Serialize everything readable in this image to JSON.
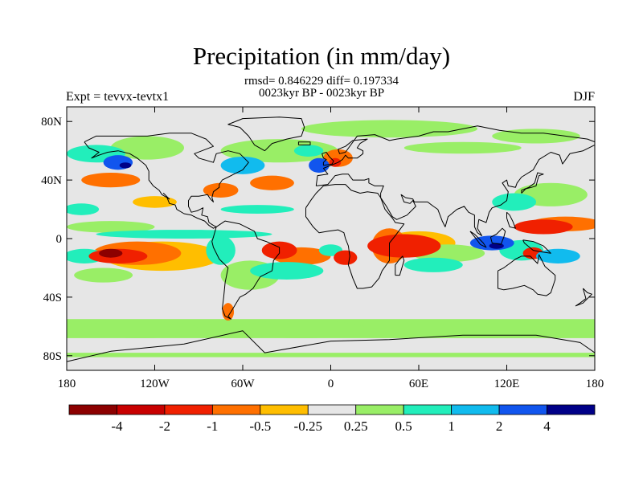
{
  "title": "Precipitation (in mm/day)",
  "stats_line": "rmsd= 0.846229  diff= 0.197334",
  "subtitle": "0023kyr BP - 0023kyr BP",
  "left_label": "Expt = tevvx-tevtx1",
  "right_label": "DJF",
  "map": {
    "projection": "cylindrical-equidistant",
    "lon_range": [
      -180,
      180
    ],
    "lat_range": [
      -90,
      90
    ],
    "y_ticks": [
      {
        "lat": 80,
        "label": "80N"
      },
      {
        "lat": 40,
        "label": "40N"
      },
      {
        "lat": 0,
        "label": "0"
      },
      {
        "lat": -40,
        "label": "40S"
      },
      {
        "lat": -80,
        "label": "80S"
      }
    ],
    "x_ticks": [
      {
        "lon": -180,
        "label": "180"
      },
      {
        "lon": -120,
        "label": "120W"
      },
      {
        "lon": -60,
        "label": "60W"
      },
      {
        "lon": 0,
        "label": "0"
      },
      {
        "lon": 60,
        "label": "60E"
      },
      {
        "lon": 120,
        "label": "120E"
      },
      {
        "lon": 180,
        "label": "180"
      }
    ],
    "background_color": "#e6e6e6",
    "coastline_color": "#000000"
  },
  "colorbar": {
    "colors": [
      "#8c0000",
      "#c80000",
      "#f02000",
      "#ff7000",
      "#ffbe00",
      "#e6e6e6",
      "#99ee66",
      "#22eebb",
      "#11bbee",
      "#1155ee",
      "#000088"
    ],
    "labels": [
      "-4",
      "-2",
      "-1",
      "-0.5",
      "-0.25",
      "0.25",
      "0.5",
      "1",
      "2",
      "4"
    ]
  },
  "field_regions": [
    {
      "level": -3,
      "lon": -145,
      "lat": -12,
      "rx": 20,
      "ry": 5
    },
    {
      "level": -5,
      "lon": -150,
      "lat": -10,
      "rx": 8,
      "ry": 3
    },
    {
      "level": -2,
      "lon": -132,
      "lat": -10,
      "rx": 30,
      "ry": 8
    },
    {
      "level": -1,
      "lon": -115,
      "lat": -12,
      "rx": 40,
      "ry": 10
    },
    {
      "level": 2,
      "lon": -168,
      "lat": -12,
      "rx": 14,
      "ry": 5
    },
    {
      "level": 1,
      "lon": -155,
      "lat": -25,
      "rx": 20,
      "ry": 5
    },
    {
      "level": 2,
      "lon": -100,
      "lat": 3,
      "rx": 60,
      "ry": 3
    },
    {
      "level": 1,
      "lon": -150,
      "lat": 8,
      "rx": 30,
      "ry": 4
    },
    {
      "level": -2,
      "lon": -150,
      "lat": 40,
      "rx": 20,
      "ry": 5
    },
    {
      "level": 4,
      "lon": -145,
      "lat": 52,
      "rx": 10,
      "ry": 5
    },
    {
      "level": 5,
      "lon": -140,
      "lat": 50,
      "rx": 4,
      "ry": 2
    },
    {
      "level": 2,
      "lon": -160,
      "lat": 58,
      "rx": 20,
      "ry": 6
    },
    {
      "level": 1,
      "lon": -125,
      "lat": 62,
      "rx": 25,
      "ry": 8
    },
    {
      "level": 3,
      "lon": -60,
      "lat": 50,
      "rx": 15,
      "ry": 6
    },
    {
      "level": -2,
      "lon": -75,
      "lat": 33,
      "rx": 12,
      "ry": 5
    },
    {
      "level": -2,
      "lon": -40,
      "lat": 38,
      "rx": 15,
      "ry": 5
    },
    {
      "level": 1,
      "lon": -35,
      "lat": 60,
      "rx": 40,
      "ry": 8
    },
    {
      "level": 4,
      "lon": -8,
      "lat": 50,
      "rx": 7,
      "ry": 5
    },
    {
      "level": -2,
      "lon": 5,
      "lat": 55,
      "rx": 10,
      "ry": 6
    },
    {
      "level": -3,
      "lon": 3,
      "lat": 52,
      "rx": 4,
      "ry": 3
    },
    {
      "level": 2,
      "lon": -15,
      "lat": 60,
      "rx": 10,
      "ry": 4
    },
    {
      "level": 1,
      "lon": 40,
      "lat": 75,
      "rx": 60,
      "ry": 6
    },
    {
      "level": 1,
      "lon": 90,
      "lat": 62,
      "rx": 40,
      "ry": 4
    },
    {
      "level": 2,
      "lon": -50,
      "lat": 20,
      "rx": 25,
      "ry": 3
    },
    {
      "level": 2,
      "lon": -75,
      "lat": -8,
      "rx": 10,
      "ry": 10
    },
    {
      "level": 1,
      "lon": -55,
      "lat": -25,
      "rx": 20,
      "ry": 10
    },
    {
      "level": -3,
      "lon": -35,
      "lat": -8,
      "rx": 12,
      "ry": 6
    },
    {
      "level": -2,
      "lon": -20,
      "lat": -12,
      "rx": 20,
      "ry": 6
    },
    {
      "level": 2,
      "lon": -30,
      "lat": -22,
      "rx": 25,
      "ry": 6
    },
    {
      "level": -3,
      "lon": 10,
      "lat": -13,
      "rx": 8,
      "ry": 5
    },
    {
      "level": 2,
      "lon": 0,
      "lat": -8,
      "rx": 8,
      "ry": 4
    },
    {
      "level": -3,
      "lon": 50,
      "lat": -5,
      "rx": 25,
      "ry": 8
    },
    {
      "level": -2,
      "lon": 40,
      "lat": -5,
      "rx": 12,
      "ry": 12
    },
    {
      "level": -1,
      "lon": 60,
      "lat": -3,
      "rx": 25,
      "ry": 8
    },
    {
      "level": 2,
      "lon": 70,
      "lat": -18,
      "rx": 20,
      "ry": 5
    },
    {
      "level": 1,
      "lon": 80,
      "lat": -10,
      "rx": 25,
      "ry": 6
    },
    {
      "level": -3,
      "lon": 145,
      "lat": 8,
      "rx": 20,
      "ry": 5
    },
    {
      "level": -2,
      "lon": 160,
      "lat": 10,
      "rx": 25,
      "ry": 5
    },
    {
      "level": 4,
      "lon": 110,
      "lat": -3,
      "rx": 15,
      "ry": 5
    },
    {
      "level": 5,
      "lon": 113,
      "lat": -5,
      "rx": 5,
      "ry": 2
    },
    {
      "level": 2,
      "lon": 130,
      "lat": -8,
      "rx": 15,
      "ry": 7
    },
    {
      "level": -3,
      "lon": 138,
      "lat": -10,
      "rx": 7,
      "ry": 4
    },
    {
      "level": 3,
      "lon": 155,
      "lat": -12,
      "rx": 15,
      "ry": 5
    },
    {
      "level": 2,
      "lon": 125,
      "lat": 25,
      "rx": 15,
      "ry": 6
    },
    {
      "level": 1,
      "lon": 150,
      "lat": 30,
      "rx": 25,
      "ry": 8
    },
    {
      "level": 2,
      "lon": -170,
      "lat": 20,
      "rx": 12,
      "ry": 4
    },
    {
      "level": -1,
      "lon": -120,
      "lat": 25,
      "rx": 15,
      "ry": 4
    },
    {
      "level": -2,
      "lon": -70,
      "lat": -50,
      "rx": 4,
      "ry": 6
    },
    {
      "level": 1,
      "lon": -130,
      "lat": -62,
      "rx": 40,
      "ry": 6
    },
    {
      "level": 1,
      "lon": -20,
      "lat": -62,
      "rx": 45,
      "ry": 6
    },
    {
      "level": 1,
      "lon": 100,
      "lat": -62,
      "rx": 60,
      "ry": 6
    },
    {
      "level": 1,
      "lon": 140,
      "lat": 70,
      "rx": 30,
      "ry": 5
    }
  ],
  "field_bands": [
    {
      "level": 1,
      "lat_top": -55,
      "lat_bottom": -68
    },
    {
      "level": 1,
      "lat_top": -78,
      "lat_bottom": -81
    }
  ]
}
